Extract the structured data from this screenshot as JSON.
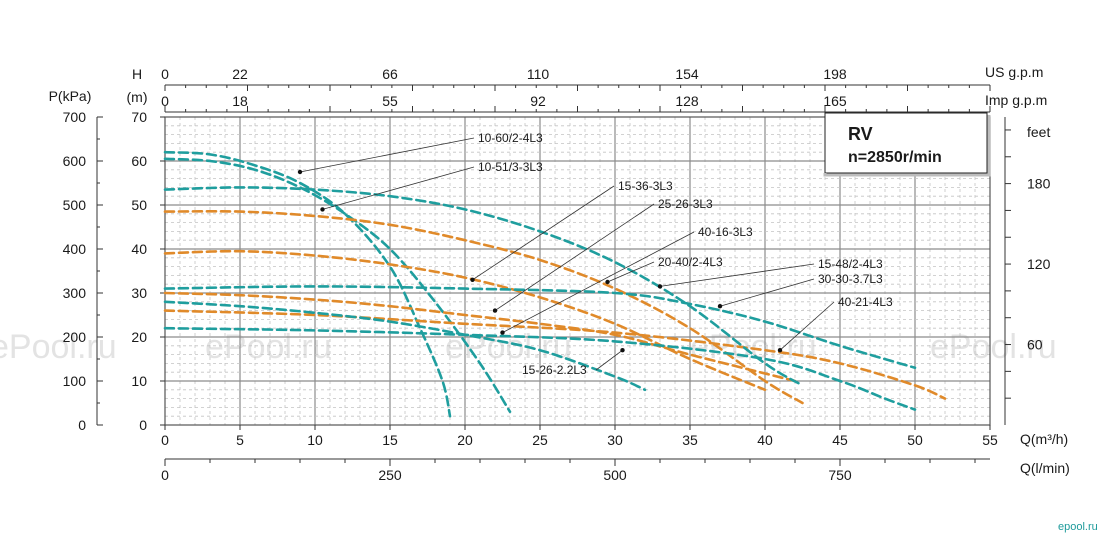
{
  "chart_data": {
    "type": "line",
    "model_box": {
      "title": "RV",
      "subtitle": "n=2850r/min"
    },
    "axes": {
      "x_main": {
        "label": "Q(m³/h)",
        "ticks": [
          0,
          5,
          10,
          15,
          20,
          25,
          30,
          35,
          40,
          45,
          50,
          55
        ],
        "range": [
          0,
          55
        ]
      },
      "x_lmin": {
        "label": "Q(l/min)",
        "ticks": [
          0,
          250,
          500,
          750
        ],
        "range": [
          0,
          916.67
        ]
      },
      "x_usgpm": {
        "label": "US g.p.m",
        "ticks": [
          0,
          22,
          66,
          110,
          154,
          198
        ]
      },
      "x_impgpm": {
        "label": "Imp g.p.m",
        "ticks": [
          0,
          18,
          55,
          92,
          128,
          165
        ]
      },
      "y_head": {
        "label_top": "H",
        "label_unit": "(m)",
        "ticks": [
          0,
          10,
          20,
          30,
          40,
          50,
          60,
          70
        ],
        "range": [
          0,
          70
        ]
      },
      "y_pressure": {
        "label": "P(kPa)",
        "ticks": [
          0,
          100,
          200,
          300,
          400,
          500,
          600,
          700
        ]
      },
      "y_feet": {
        "label": "feet",
        "ticks": [
          60,
          120,
          180
        ]
      },
      "grid": true
    },
    "series": [
      {
        "name": "10-60/2-4L3",
        "color": "#1f9e9e",
        "x": [
          0,
          3,
          6,
          9,
          12,
          15,
          17,
          18.5,
          19
        ],
        "y": [
          62,
          61.5,
          59,
          55,
          48,
          36,
          22,
          10,
          2
        ],
        "label_at": [
          9,
          57.5
        ]
      },
      {
        "name": "10-51/3-3L3",
        "color": "#1f9e9e",
        "x": [
          0,
          3,
          6,
          9,
          12,
          15,
          18,
          21,
          23
        ],
        "y": [
          60.5,
          60,
          58,
          54,
          48,
          40,
          28,
          14,
          3
        ],
        "label_at": [
          10.5,
          49
        ]
      },
      {
        "name": "15-36-3L3",
        "color": "#e08a2a",
        "x": [
          0,
          5,
          10,
          15,
          20,
          25,
          30,
          35,
          40
        ],
        "y": [
          39,
          39.5,
          38.5,
          36.5,
          33.5,
          29,
          23,
          15,
          8
        ],
        "label_at": [
          20.5,
          33
        ]
      },
      {
        "name": "25-26-3L3",
        "color": "#e08a2a",
        "x": [
          0,
          5,
          10,
          15,
          20,
          25,
          30,
          35,
          42
        ],
        "y": [
          30,
          29.5,
          28.5,
          27,
          25,
          23,
          20.5,
          16,
          10
        ],
        "label_at": [
          22,
          26
        ]
      },
      {
        "name": "40-16-3L3",
        "color": "#e08a2a",
        "x": [
          0,
          10,
          20,
          30,
          40,
          45,
          50,
          52
        ],
        "y": [
          26,
          25,
          23,
          21,
          17,
          14,
          9,
          6
        ],
        "label_at": [
          22.5,
          21
        ]
      },
      {
        "name": "20-40/2-4L3",
        "color": "#e08a2a",
        "x": [
          0,
          5,
          10,
          15,
          20,
          25,
          30,
          35,
          40,
          42.5
        ],
        "y": [
          48.5,
          48.5,
          47.5,
          45.5,
          42,
          37.5,
          31,
          22,
          10,
          5
        ],
        "label_at": [
          29.5,
          32.5
        ]
      },
      {
        "name": "15-48/2-4L3",
        "color": "#1f9e9e",
        "x": [
          0,
          5,
          10,
          15,
          20,
          25,
          30,
          35,
          40,
          42.5
        ],
        "y": [
          53.5,
          54,
          53.5,
          52,
          49,
          44,
          37,
          27,
          14,
          9
        ],
        "label_at": [
          33,
          31.5
        ]
      },
      {
        "name": "30-30-3.7L3",
        "color": "#1f9e9e",
        "x": [
          0,
          10,
          20,
          30,
          35,
          40,
          45,
          50
        ],
        "y": [
          31,
          31.5,
          31,
          30,
          27.5,
          23.5,
          18,
          13
        ],
        "label_at": [
          37,
          27
        ]
      },
      {
        "name": "40-21-4L3",
        "color": "#1f9e9e",
        "x": [
          0,
          10,
          20,
          30,
          40,
          45,
          48,
          50
        ],
        "y": [
          22,
          21.5,
          20.5,
          19,
          15,
          10,
          6,
          3.5
        ],
        "label_at": [
          41,
          17
        ]
      },
      {
        "name": "15-26-2.2L3",
        "color": "#1f9e9e",
        "x": [
          0,
          5,
          10,
          15,
          20,
          25,
          30,
          32
        ],
        "y": [
          28,
          27,
          25.5,
          23.5,
          20.5,
          17,
          11,
          8
        ],
        "label_at": [
          30.5,
          17
        ]
      }
    ]
  },
  "watermarks": [
    "ePool.ru",
    "ePool.ru",
    "ePool.ru",
    "ePool.ru",
    "ePool.ru"
  ],
  "brand": "epool.ru",
  "colors": {
    "teal": "#1f9e9e",
    "orange": "#e08a2a",
    "grid": "#9a9a9a"
  }
}
